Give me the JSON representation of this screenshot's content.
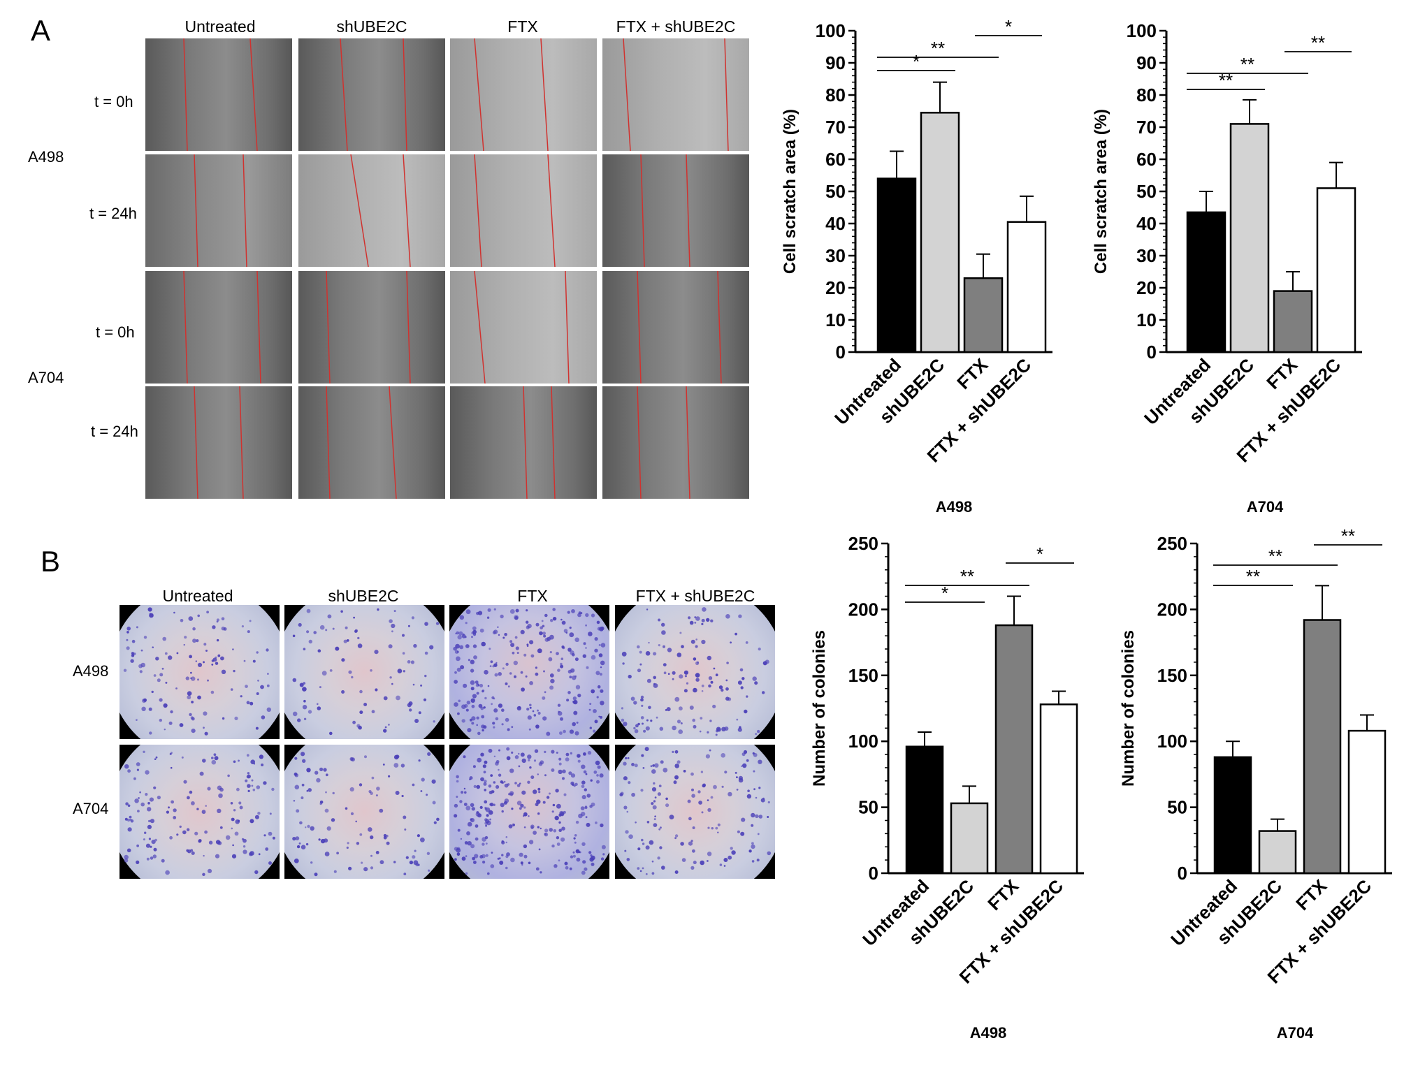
{
  "panels": {
    "a": "A",
    "b": "B"
  },
  "panel_a": {
    "columns": [
      "Untreated",
      "shUBE2C",
      "FTX",
      "FTX + shUBE2C"
    ],
    "cell_lines": [
      "A498",
      "A704"
    ],
    "timepoints": [
      "t = 0h",
      "t = 24h"
    ]
  },
  "panel_b": {
    "columns": [
      "Untreated",
      "shUBE2C",
      "FTX",
      "FTX + shUBE2C"
    ],
    "cell_lines": [
      "A498",
      "A704"
    ]
  },
  "colors": {
    "untreated": "#000000",
    "shube2c": "#d3d3d3",
    "ftx": "#7f7f7f",
    "ftx_shube2c": "#ffffff",
    "scratch_line": "#d0322f",
    "stain": "#4a3fb8"
  },
  "chart_data": [
    {
      "type": "bar",
      "panel": "A",
      "title": "A498",
      "ylabel": "Cell scratch area (%)",
      "ylim": [
        0,
        100
      ],
      "yticks": [
        0,
        10,
        20,
        30,
        40,
        50,
        60,
        70,
        80,
        90,
        100
      ],
      "categories": [
        "Untreated",
        "shUBE2C",
        "FTX",
        "FTX + shUBE2C"
      ],
      "values": [
        54,
        74.5,
        23,
        40.5
      ],
      "errors": [
        8.5,
        9.5,
        7.5,
        8
      ],
      "significance": [
        {
          "from": 0,
          "to": 1,
          "label": "*"
        },
        {
          "from": 0,
          "to": 2,
          "label": "**"
        },
        {
          "from": 2,
          "to": 3,
          "label": "*"
        }
      ]
    },
    {
      "type": "bar",
      "panel": "A",
      "title": "A704",
      "ylabel": "Cell scratch area (%)",
      "ylim": [
        0,
        100
      ],
      "yticks": [
        0,
        10,
        20,
        30,
        40,
        50,
        60,
        70,
        80,
        90,
        100
      ],
      "categories": [
        "Untreated",
        "shUBE2C",
        "FTX",
        "FTX + shUBE2C"
      ],
      "values": [
        43.5,
        71,
        19,
        51
      ],
      "errors": [
        6.5,
        7.5,
        6,
        8
      ],
      "significance": [
        {
          "from": 0,
          "to": 1,
          "label": "**"
        },
        {
          "from": 0,
          "to": 2,
          "label": "**"
        },
        {
          "from": 2,
          "to": 3,
          "label": "**"
        }
      ]
    },
    {
      "type": "bar",
      "panel": "B",
      "title": "A498",
      "ylabel": "Number of colonies",
      "ylim": [
        0,
        250
      ],
      "yticks": [
        0,
        50,
        100,
        150,
        200,
        250
      ],
      "categories": [
        "Untreated",
        "shUBE2C",
        "FTX",
        "FTX + shUBE2C"
      ],
      "values": [
        96,
        53,
        188,
        128
      ],
      "errors": [
        11,
        13,
        22,
        10
      ],
      "significance": [
        {
          "from": 0,
          "to": 1,
          "label": "*"
        },
        {
          "from": 0,
          "to": 2,
          "label": "**"
        },
        {
          "from": 2,
          "to": 3,
          "label": "*"
        }
      ]
    },
    {
      "type": "bar",
      "panel": "B",
      "title": "A704",
      "ylabel": "Number of colonies",
      "ylim": [
        0,
        250
      ],
      "yticks": [
        0,
        50,
        100,
        150,
        200,
        250
      ],
      "categories": [
        "Untreated",
        "shUBE2C",
        "FTX",
        "FTX + shUBE2C"
      ],
      "values": [
        88,
        32,
        192,
        108
      ],
      "errors": [
        12,
        9,
        26,
        12
      ],
      "significance": [
        {
          "from": 0,
          "to": 1,
          "label": "**"
        },
        {
          "from": 0,
          "to": 2,
          "label": "**"
        },
        {
          "from": 2,
          "to": 3,
          "label": "**"
        }
      ]
    }
  ]
}
